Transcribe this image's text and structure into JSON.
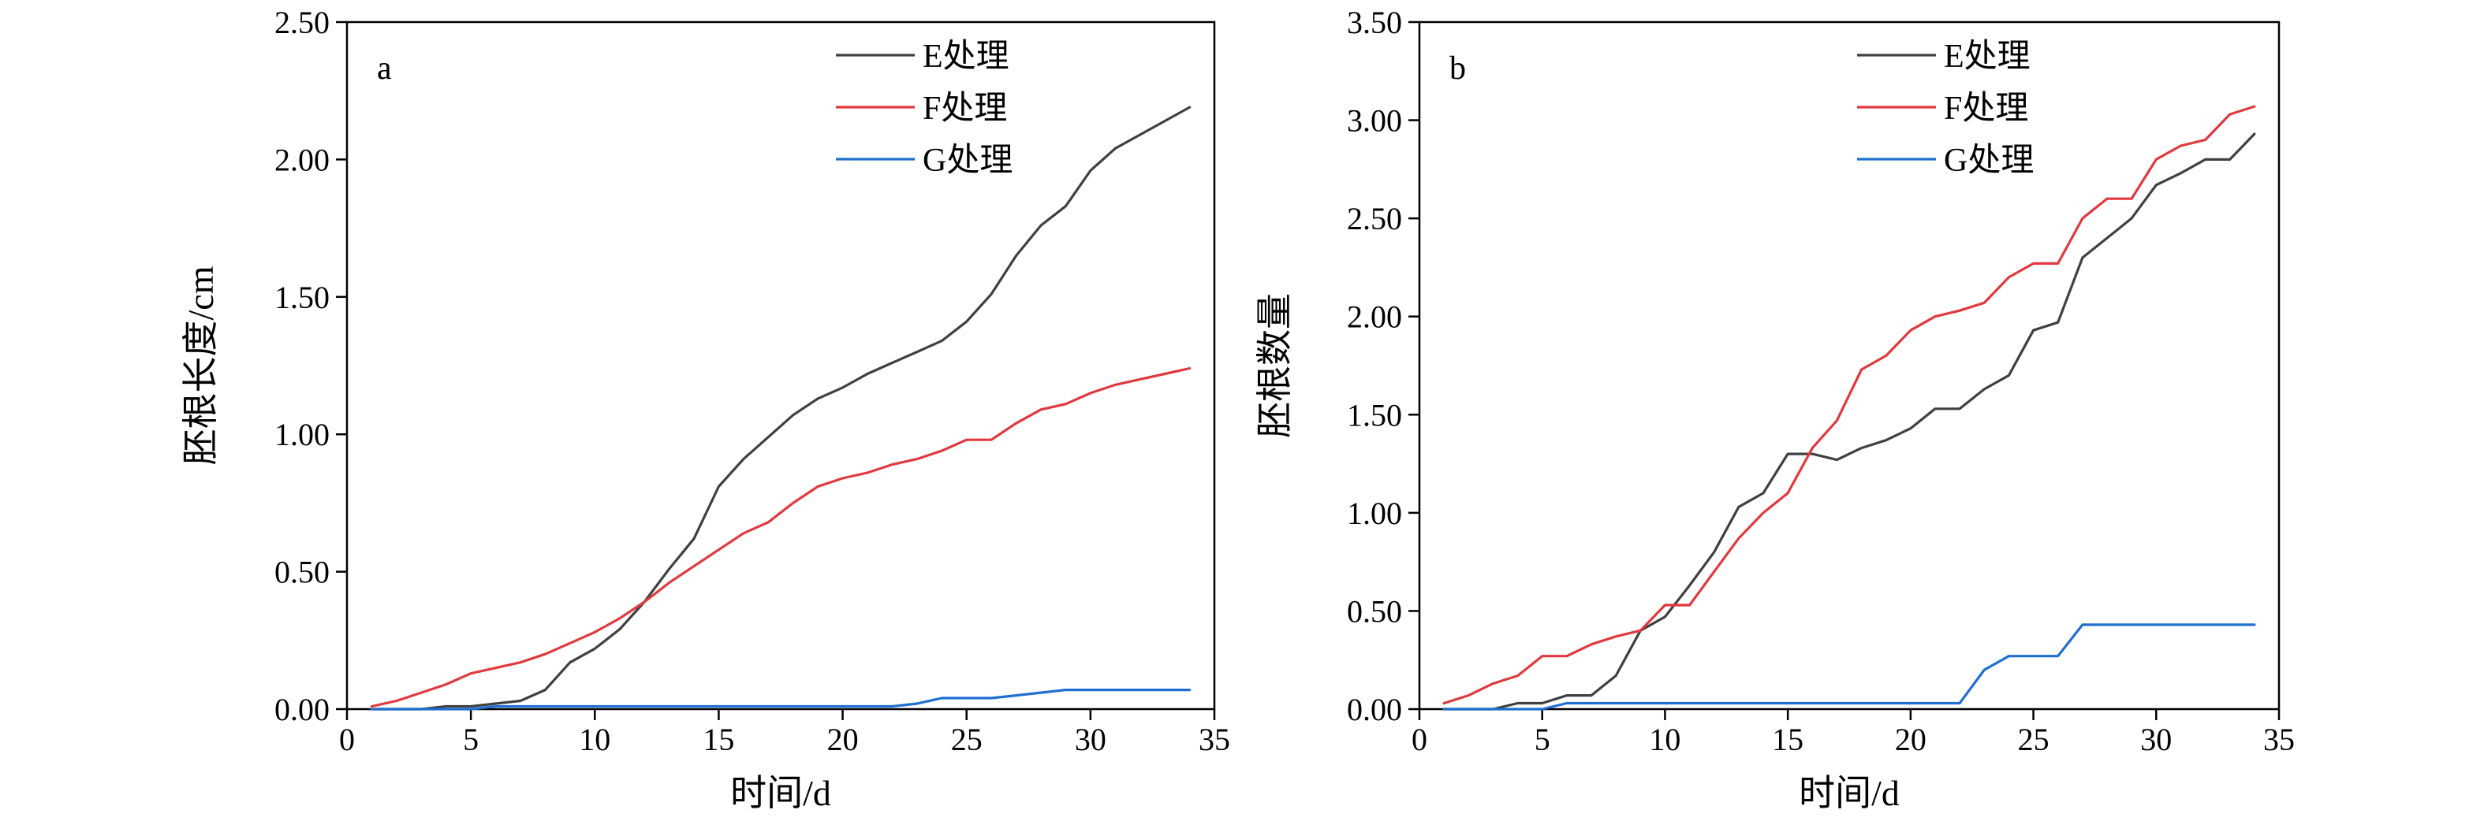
{
  "chart_data": [
    {
      "type": "line",
      "panel_label": "a",
      "xlabel": "时间/d",
      "ylabel": "胚根长度/cm",
      "xlim": [
        0,
        35
      ],
      "ylim": [
        0,
        2.5
      ],
      "xticks": [
        "0",
        "5",
        "10",
        "15",
        "20",
        "25",
        "30",
        "35"
      ],
      "yticks": [
        "0.00",
        "0.50",
        "1.00",
        "1.50",
        "2.00",
        "2.50"
      ],
      "legend_position": "top-right",
      "series": [
        {
          "name": "E处理",
          "color": "#404040",
          "x": [
            1,
            2,
            3,
            4,
            5,
            6,
            7,
            8,
            9,
            10,
            11,
            12,
            13,
            14,
            15,
            16,
            17,
            18,
            19,
            20,
            21,
            22,
            23,
            24,
            25,
            26,
            27,
            28,
            29,
            30,
            31,
            32,
            33,
            34
          ],
          "y": [
            0,
            0,
            0,
            0.01,
            0.01,
            0.02,
            0.03,
            0.07,
            0.17,
            0.22,
            0.29,
            0.39,
            0.51,
            0.62,
            0.81,
            0.91,
            0.99,
            1.07,
            1.13,
            1.17,
            1.22,
            1.26,
            1.3,
            1.34,
            1.41,
            1.51,
            1.65,
            1.76,
            1.83,
            1.96,
            2.04,
            2.09,
            2.14,
            2.19
          ]
        },
        {
          "name": "F处理",
          "color": "#e0393e",
          "x": [
            1,
            2,
            3,
            4,
            5,
            6,
            7,
            8,
            9,
            10,
            11,
            12,
            13,
            14,
            15,
            16,
            17,
            18,
            19,
            20,
            21,
            22,
            23,
            24,
            25,
            26,
            27,
            28,
            29,
            30,
            31,
            32,
            33,
            34
          ],
          "y": [
            0.01,
            0.03,
            0.06,
            0.09,
            0.13,
            0.15,
            0.17,
            0.2,
            0.24,
            0.28,
            0.33,
            0.39,
            0.46,
            0.52,
            0.58,
            0.64,
            0.68,
            0.75,
            0.81,
            0.84,
            0.86,
            0.89,
            0.91,
            0.94,
            0.98,
            0.98,
            1.04,
            1.09,
            1.11,
            1.15,
            1.18,
            1.2,
            1.22,
            1.24
          ]
        },
        {
          "name": "G处理",
          "color": "#1f6fd1",
          "x": [
            1,
            2,
            3,
            4,
            5,
            6,
            7,
            8,
            9,
            10,
            11,
            12,
            13,
            14,
            15,
            16,
            17,
            18,
            19,
            20,
            21,
            22,
            23,
            24,
            25,
            26,
            27,
            28,
            29,
            30,
            31,
            32,
            33,
            34
          ],
          "y": [
            0,
            0,
            0,
            0,
            0,
            0.01,
            0.01,
            0.01,
            0.01,
            0.01,
            0.01,
            0.01,
            0.01,
            0.01,
            0.01,
            0.01,
            0.01,
            0.01,
            0.01,
            0.01,
            0.01,
            0.01,
            0.02,
            0.04,
            0.04,
            0.04,
            0.05,
            0.06,
            0.07,
            0.07,
            0.07,
            0.07,
            0.07,
            0.07
          ]
        }
      ]
    },
    {
      "type": "line",
      "panel_label": "b",
      "xlabel": "时间/d",
      "ylabel": "胚根数量",
      "xlim": [
        0,
        35
      ],
      "ylim": [
        0,
        3.5
      ],
      "xticks": [
        "0",
        "5",
        "10",
        "15",
        "20",
        "25",
        "30",
        "35"
      ],
      "yticks": [
        "0.00",
        "0.50",
        "1.00",
        "1.50",
        "2.00",
        "2.50",
        "3.00",
        "3.50"
      ],
      "legend_position": "top-right",
      "series": [
        {
          "name": "E处理",
          "color": "#404040",
          "x": [
            1,
            2,
            3,
            4,
            5,
            6,
            7,
            8,
            9,
            10,
            11,
            12,
            13,
            14,
            15,
            16,
            17,
            18,
            19,
            20,
            21,
            22,
            23,
            24,
            25,
            26,
            27,
            28,
            29,
            30,
            31,
            32,
            33,
            34
          ],
          "y": [
            0,
            0,
            0,
            0.03,
            0.03,
            0.07,
            0.07,
            0.17,
            0.4,
            0.47,
            0.63,
            0.8,
            1.03,
            1.1,
            1.3,
            1.3,
            1.27,
            1.33,
            1.37,
            1.43,
            1.53,
            1.53,
            1.63,
            1.7,
            1.93,
            1.97,
            2.3,
            2.4,
            2.5,
            2.67,
            2.73,
            2.8,
            2.8,
            2.93
          ]
        },
        {
          "name": "F处理",
          "color": "#e0393e",
          "x": [
            1,
            2,
            3,
            4,
            5,
            6,
            7,
            8,
            9,
            10,
            11,
            12,
            13,
            14,
            15,
            16,
            17,
            18,
            19,
            20,
            21,
            22,
            23,
            24,
            25,
            26,
            27,
            28,
            29,
            30,
            31,
            32,
            33,
            34
          ],
          "y": [
            0.03,
            0.07,
            0.13,
            0.17,
            0.27,
            0.27,
            0.33,
            0.37,
            0.4,
            0.53,
            0.53,
            0.7,
            0.87,
            1,
            1.1,
            1.33,
            1.47,
            1.73,
            1.8,
            1.93,
            2,
            2.03,
            2.07,
            2.2,
            2.27,
            2.27,
            2.5,
            2.6,
            2.6,
            2.8,
            2.87,
            2.9,
            3.03,
            3.07
          ]
        },
        {
          "name": "G处理",
          "color": "#1f6fd1",
          "x": [
            1,
            2,
            3,
            4,
            5,
            6,
            7,
            8,
            9,
            10,
            11,
            12,
            13,
            14,
            15,
            16,
            17,
            18,
            19,
            20,
            21,
            22,
            23,
            24,
            25,
            26,
            27,
            28,
            29,
            30,
            31,
            32,
            33,
            34
          ],
          "y": [
            0,
            0,
            0,
            0,
            0,
            0.03,
            0.03,
            0.03,
            0.03,
            0.03,
            0.03,
            0.03,
            0.03,
            0.03,
            0.03,
            0.03,
            0.03,
            0.03,
            0.03,
            0.03,
            0.03,
            0.03,
            0.2,
            0.27,
            0.27,
            0.27,
            0.43,
            0.43,
            0.43,
            0.43,
            0.43,
            0.43,
            0.43,
            0.43
          ]
        }
      ]
    }
  ]
}
